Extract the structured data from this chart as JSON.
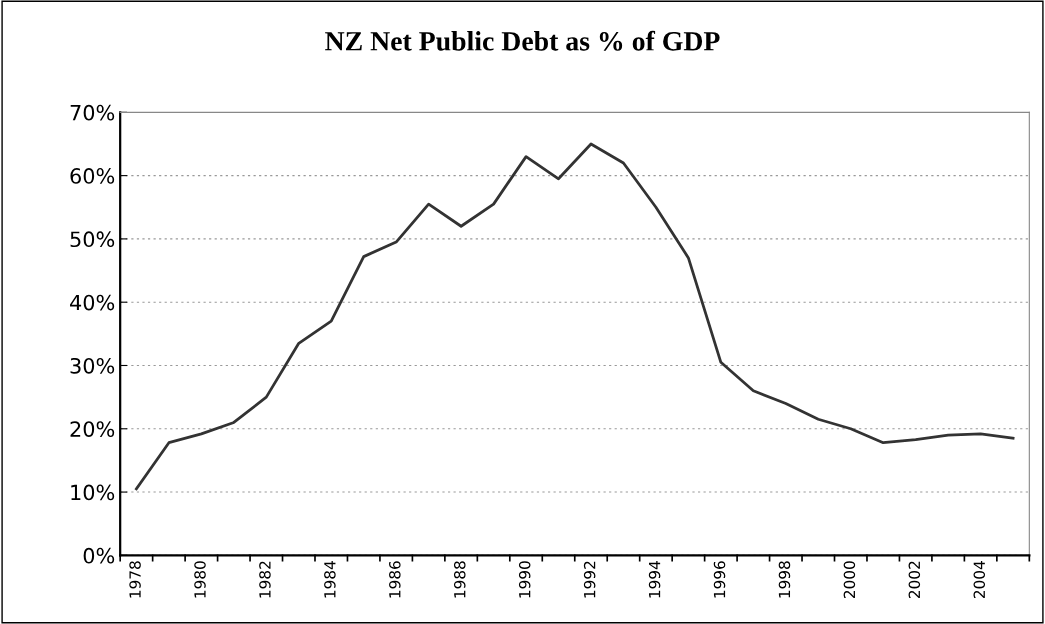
{
  "chart_data": {
    "type": "line",
    "title": "NZ Net Public Debt as % of GDP",
    "categories": [
      "1978",
      null,
      "1980",
      null,
      "1982",
      null,
      "1984",
      null,
      "1986",
      null,
      "1988",
      null,
      "1990",
      null,
      "1992",
      null,
      "1994",
      null,
      "1996",
      null,
      "1998",
      null,
      "2000",
      null,
      "2002",
      null,
      "2004",
      null
    ],
    "series": [
      {
        "color": "#333333",
        "values": [
          10.5,
          17.8,
          19.2,
          21,
          25,
          33.5,
          37,
          47.2,
          49.5,
          55.5,
          52,
          55.5,
          63,
          59.5,
          65,
          62,
          55,
          47,
          30.5,
          26,
          24,
          21.5,
          20,
          17.8,
          18.3,
          19,
          19.2,
          18.5
        ]
      }
    ],
    "ylim": [
      0,
      70
    ],
    "yticks": [
      {
        "value": 0,
        "label": "0%"
      },
      {
        "value": 10,
        "label": "10%"
      },
      {
        "value": 20,
        "label": "20%"
      },
      {
        "value": 30,
        "label": "30%"
      },
      {
        "value": 40,
        "label": "40%"
      },
      {
        "value": 50,
        "label": "50%"
      },
      {
        "value": 60,
        "label": "60%"
      },
      {
        "value": 70,
        "label": "70%"
      }
    ],
    "grid": "y",
    "marker": "none",
    "line_style": "solid"
  }
}
